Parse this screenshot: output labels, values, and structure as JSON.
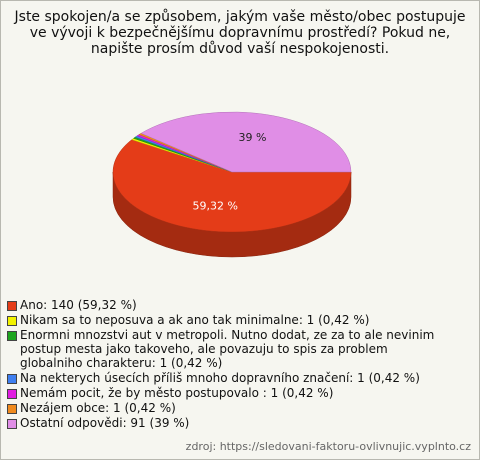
{
  "chart_data": {
    "type": "pie",
    "title": "Jste spokojen/a se způsobem, jakým vaše město/obec postupuje ve vývoji k bezpečnějšímu dopravnímu prostředí? Pokud ne, napište prosím důvod vaší nespokojenosti.",
    "categories": [
      "Ano: 140 (59,32 %)",
      "Nikam sa to neposuva a ak ano tak minimalne: 1 (0,42 %)",
      "Enormni mnozstvi aut v metropoli. Nutno dodat, ze za to ale nevinim postup mesta jako takoveho, ale povazuju to spis za problem globalniho charakteru: 1 (0,42 %)",
      "Na nekterych úsecích příliš mnoho dopravního značení: 1 (0,42 %)",
      "Nemám pocit, že by město postupovalo : 1 (0,42 %)",
      "Nezájem obce: 1 (0,42 %)",
      "Ostatní odpovědi: 91 (39 %)"
    ],
    "values": [
      59.32,
      0.42,
      0.42,
      0.42,
      0.42,
      0.42,
      39
    ],
    "value_labels": [
      "59,32 %",
      null,
      null,
      null,
      null,
      null,
      "39 %"
    ],
    "colors": [
      "#e43c18",
      "#f2f200",
      "#1ea51e",
      "#3f7ff0",
      "#e01ee0",
      "#f08a1e",
      "#e08ee6"
    ],
    "source": "zdroj: https://sledovani-faktoru-ovlivnujic.vyplnto.cz"
  }
}
